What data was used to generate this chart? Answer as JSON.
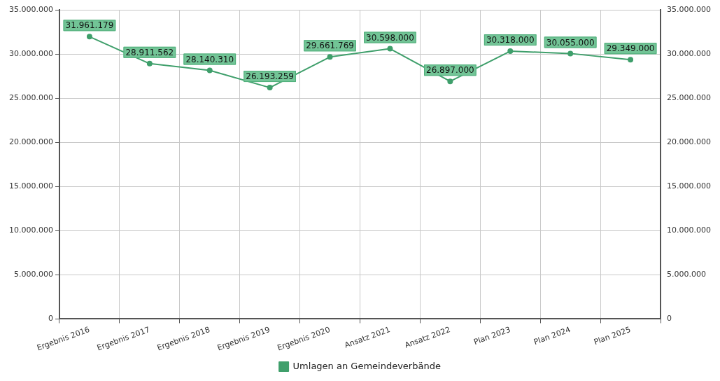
{
  "chart_data": {
    "type": "line",
    "categories": [
      "Ergebnis 2016",
      "Ergebnis 2017",
      "Ergebnis 2018",
      "Ergebnis 2019",
      "Ergebnis 2020",
      "Ansatz 2021",
      "Ansatz 2022",
      "Plan 2023",
      "Plan 2024",
      "Plan 2025"
    ],
    "series": [
      {
        "name": "Umlagen an Gemeindeverbände",
        "color": "#3f9f6b",
        "values": [
          31961179,
          28911562,
          28140310,
          26193259,
          29661769,
          30598000,
          26897000,
          30318000,
          30055000,
          29349000
        ],
        "value_labels": [
          "31.961.179",
          "28.911.562",
          "28.140.310",
          "26.193.259",
          "29.661.769",
          "30.598.000",
          "26.897.000",
          "30.318.000",
          "30.055.000",
          "29.349.000"
        ]
      }
    ],
    "ylim": [
      0,
      35000000
    ],
    "yticks": [
      {
        "value": 0,
        "label": "0"
      },
      {
        "value": 5000000,
        "label": "5.000.000"
      },
      {
        "value": 10000000,
        "label": "10.000.000"
      },
      {
        "value": 15000000,
        "label": "15.000.000"
      },
      {
        "value": 20000000,
        "label": "20.000.000"
      },
      {
        "value": 25000000,
        "label": "25.000.000"
      },
      {
        "value": 30000000,
        "label": "30.000.000"
      },
      {
        "value": 35000000,
        "label": "35.000.000"
      }
    ],
    "y2lim": [
      0,
      35000000
    ],
    "y2ticks": [
      {
        "value": 0,
        "label": "0"
      },
      {
        "value": 5000000,
        "label": "5.000.000"
      },
      {
        "value": 10000000,
        "label": "10.000.000"
      },
      {
        "value": 15000000,
        "label": "15.000.000"
      },
      {
        "value": 20000000,
        "label": "20.000.000"
      },
      {
        "value": 25000000,
        "label": "25.000.000"
      },
      {
        "value": 30000000,
        "label": "30.000.000"
      },
      {
        "value": 35000000,
        "label": "35.000.000"
      }
    ],
    "grid": true,
    "legend": "bottom",
    "marker": "circle",
    "line_style": "solid"
  }
}
